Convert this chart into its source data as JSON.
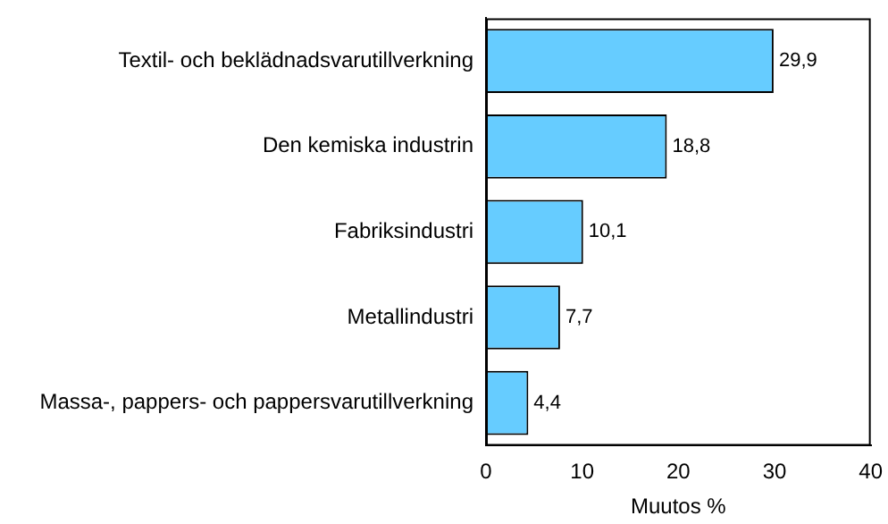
{
  "chart_data": {
    "type": "bar",
    "orientation": "horizontal",
    "categories": [
      "Textil- och beklädnadsvarutillverkning",
      "Den kemiska industrin",
      "Fabriksindustri",
      "Metallindustri",
      "Massa-, pappers- och pappersvarutillverkning"
    ],
    "values": [
      29.9,
      18.8,
      10.1,
      7.7,
      4.4
    ],
    "value_labels": [
      "29,9",
      "18,8",
      "10,1",
      "7,7",
      "4,4"
    ],
    "color": "#66ccff",
    "xlim": [
      0,
      40
    ],
    "xticks": [
      0,
      10,
      20,
      30,
      40
    ],
    "xlabel": "Muutos %",
    "grid": false,
    "legend": false
  }
}
